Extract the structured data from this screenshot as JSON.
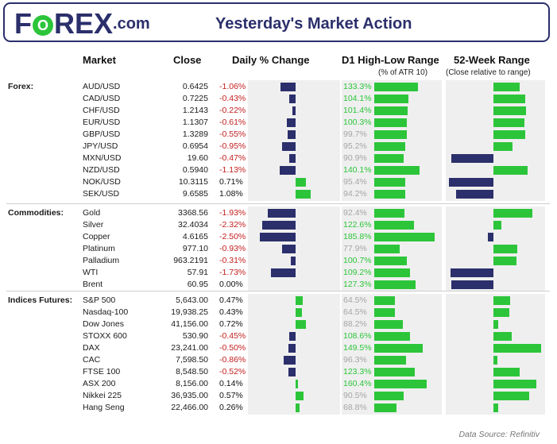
{
  "header": {
    "logo_before": "F",
    "logo_o": "O",
    "logo_after": "REX",
    "logo_suffix": ".com",
    "title": "Yesterday's Market Action"
  },
  "columns": {
    "market": "Market",
    "close": "Close",
    "change": "Daily % Change",
    "hl": "D1 High-Low Range",
    "hl_sub": "(% of ATR 10)",
    "wk52": "52-Week Range",
    "wk52_sub": "(Close relative to range)"
  },
  "footer": "Data Source: Refinitiv",
  "colors": {
    "navy": "#2b2f6b",
    "green": "#2cc53a",
    "red": "#c41e1e",
    "grey": "#a5a5a5"
  },
  "chart_data": {
    "type": "table",
    "sections": [
      {
        "label": "Forex:",
        "rows": [
          {
            "name": "AUD/USD",
            "close": "0.6425",
            "change": "-1.06%",
            "change_value": -1.06,
            "hl": "133.3%",
            "hl_value": 133.3,
            "wk52_value": 0.55
          },
          {
            "name": "CAD/USD",
            "close": "0.7225",
            "change": "-0.43%",
            "change_value": -0.43,
            "hl": "104.1%",
            "hl_value": 104.1,
            "wk52_value": 0.66
          },
          {
            "name": "CHF/USD",
            "close": "1.2143",
            "change": "-0.22%",
            "change_value": -0.22,
            "hl": "101.4%",
            "hl_value": 101.4,
            "wk52_value": 0.68
          },
          {
            "name": "EUR/USD",
            "close": "1.1307",
            "change": "-0.61%",
            "change_value": -0.61,
            "hl": "100.3%",
            "hl_value": 100.3,
            "wk52_value": 0.65
          },
          {
            "name": "GBP/USD",
            "close": "1.3289",
            "change": "-0.55%",
            "change_value": -0.55,
            "hl": "99.7%",
            "hl_value": 99.7,
            "wk52_value": 0.67
          },
          {
            "name": "JPY/USD",
            "close": "0.6954",
            "change": "-0.95%",
            "change_value": -0.95,
            "hl": "95.2%",
            "hl_value": 95.2,
            "wk52_value": 0.4
          },
          {
            "name": "MXN/USD",
            "close": "19.60",
            "change": "-0.47%",
            "change_value": -0.47,
            "hl": "90.9%",
            "hl_value": 90.9,
            "wk52_value": -0.88
          },
          {
            "name": "NZD/USD",
            "close": "0.5940",
            "change": "-1.13%",
            "change_value": -1.13,
            "hl": "140.1%",
            "hl_value": 140.1,
            "wk52_value": 0.72
          },
          {
            "name": "NOK/USD",
            "close": "10.3115",
            "change": "0.71%",
            "change_value": 0.71,
            "hl": "95.4%",
            "hl_value": 95.4,
            "wk52_value": -0.93
          },
          {
            "name": "SEK/USD",
            "close": "9.6585",
            "change": "1.08%",
            "change_value": 1.08,
            "hl": "94.2%",
            "hl_value": 94.2,
            "wk52_value": -0.78
          }
        ]
      },
      {
        "label": "Commodities:",
        "rows": [
          {
            "name": "Gold",
            "close": "3368.56",
            "change": "-1.93%",
            "change_value": -1.93,
            "hl": "92.4%",
            "hl_value": 92.4,
            "wk52_value": 0.82
          },
          {
            "name": "Silver",
            "close": "32.4034",
            "change": "-2.32%",
            "change_value": -2.32,
            "hl": "122.6%",
            "hl_value": 122.6,
            "wk52_value": 0.16
          },
          {
            "name": "Copper",
            "close": "4.6165",
            "change": "-2.50%",
            "change_value": -2.5,
            "hl": "185.8%",
            "hl_value": 185.8,
            "wk52_value": -0.12
          },
          {
            "name": "Platinum",
            "close": "977.10",
            "change": "-0.93%",
            "change_value": -0.93,
            "hl": "77.9%",
            "hl_value": 77.9,
            "wk52_value": 0.5
          },
          {
            "name": "Palladium",
            "close": "963.2191",
            "change": "-0.31%",
            "change_value": -0.31,
            "hl": "100.7%",
            "hl_value": 100.7,
            "wk52_value": 0.48
          },
          {
            "name": "WTI",
            "close": "57.91",
            "change": "-1.73%",
            "change_value": -1.73,
            "hl": "109.2%",
            "hl_value": 109.2,
            "wk52_value": -0.9
          },
          {
            "name": "Brent",
            "close": "60.95",
            "change": "0.00%",
            "change_value": 0.0,
            "hl": "127.3%",
            "hl_value": 127.3,
            "wk52_value": -0.88
          }
        ]
      },
      {
        "label": "Indices Futures:",
        "rows": [
          {
            "name": "S&P 500",
            "close": "5,643.00",
            "change": "0.47%",
            "change_value": 0.47,
            "hl": "64.5%",
            "hl_value": 64.5,
            "wk52_value": 0.35
          },
          {
            "name": "Nasdaq-100",
            "close": "19,938.25",
            "change": "0.43%",
            "change_value": 0.43,
            "hl": "64.5%",
            "hl_value": 64.5,
            "wk52_value": 0.33
          },
          {
            "name": "Dow Jones",
            "close": "41,156.00",
            "change": "0.72%",
            "change_value": 0.72,
            "hl": "88.2%",
            "hl_value": 88.2,
            "wk52_value": 0.1
          },
          {
            "name": "STOXX 600",
            "close": "530.90",
            "change": "-0.45%",
            "change_value": -0.45,
            "hl": "108.6%",
            "hl_value": 108.6,
            "wk52_value": 0.38
          },
          {
            "name": "DAX",
            "close": "23,241.00",
            "change": "-0.50%",
            "change_value": -0.5,
            "hl": "149.5%",
            "hl_value": 149.5,
            "wk52_value": 1.0
          },
          {
            "name": "CAC",
            "close": "7,598.50",
            "change": "-0.86%",
            "change_value": -0.86,
            "hl": "96.3%",
            "hl_value": 96.3,
            "wk52_value": 0.08
          },
          {
            "name": "FTSE 100",
            "close": "8,548.50",
            "change": "-0.52%",
            "change_value": -0.52,
            "hl": "123.3%",
            "hl_value": 123.3,
            "wk52_value": 0.55
          },
          {
            "name": "ASX 200",
            "close": "8,156.00",
            "change": "0.14%",
            "change_value": 0.14,
            "hl": "160.4%",
            "hl_value": 160.4,
            "wk52_value": 0.9
          },
          {
            "name": "Nikkei 225",
            "close": "36,935.00",
            "change": "0.57%",
            "change_value": 0.57,
            "hl": "90.5%",
            "hl_value": 90.5,
            "wk52_value": 0.75
          },
          {
            "name": "Hang Seng",
            "close": "22,466.00",
            "change": "0.26%",
            "change_value": 0.26,
            "hl": "68.8%",
            "hl_value": 68.8,
            "wk52_value": 0.1
          }
        ]
      }
    ]
  }
}
